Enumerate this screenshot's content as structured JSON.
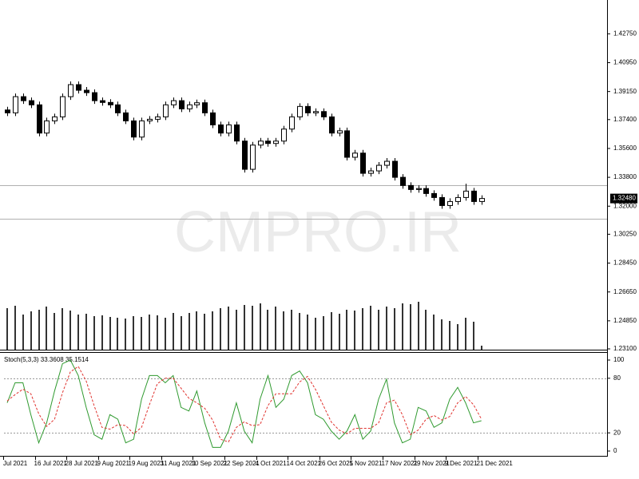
{
  "chart_data": [
    {
      "type": "candlestick",
      "watermark": "CMPRO.IR",
      "open": [
        1.38,
        1.3782,
        1.3883,
        1.3858,
        1.3832,
        1.3656,
        1.3732,
        1.3757,
        1.3883,
        1.3958,
        1.3923,
        1.3908,
        1.3858,
        1.3847,
        1.3832,
        1.3782,
        1.3732,
        1.3631,
        1.3732,
        1.3742,
        1.3757,
        1.3832,
        1.3858,
        1.3807,
        1.3832,
        1.3845,
        1.3782,
        1.3707,
        1.3656,
        1.3707,
        1.3606,
        1.343,
        1.3581,
        1.3606,
        1.3591,
        1.3606,
        1.3681,
        1.3757,
        1.3822,
        1.3782,
        1.379,
        1.3757,
        1.3656,
        1.367,
        1.3505,
        1.3531,
        1.3405,
        1.342,
        1.3455,
        1.348,
        1.338,
        1.3329,
        1.3304,
        1.331,
        1.3279,
        1.3254,
        1.3204,
        1.3229,
        1.3254,
        1.3294,
        1.3229
      ],
      "high": [
        1.382,
        1.3903,
        1.3903,
        1.3878,
        1.3852,
        1.3752,
        1.3777,
        1.3903,
        1.3978,
        1.3978,
        1.3943,
        1.3928,
        1.3878,
        1.3867,
        1.3852,
        1.3802,
        1.3752,
        1.3752,
        1.3762,
        1.3777,
        1.3852,
        1.3878,
        1.3878,
        1.3852,
        1.3865,
        1.3865,
        1.3802,
        1.3727,
        1.3727,
        1.3727,
        1.3626,
        1.3601,
        1.3626,
        1.3626,
        1.3626,
        1.3701,
        1.3777,
        1.3842,
        1.3842,
        1.381,
        1.381,
        1.3777,
        1.369,
        1.369,
        1.3551,
        1.3551,
        1.344,
        1.3475,
        1.35,
        1.35,
        1.34,
        1.3349,
        1.333,
        1.333,
        1.3299,
        1.3274,
        1.3249,
        1.3274,
        1.334,
        1.3314,
        1.3268
      ],
      "low": [
        1.3762,
        1.3762,
        1.3838,
        1.3812,
        1.3636,
        1.3636,
        1.3712,
        1.3737,
        1.3863,
        1.3903,
        1.3888,
        1.3838,
        1.3827,
        1.3812,
        1.3762,
        1.3712,
        1.3611,
        1.3611,
        1.3712,
        1.3722,
        1.3737,
        1.3812,
        1.3787,
        1.3787,
        1.3812,
        1.3762,
        1.3687,
        1.3636,
        1.3636,
        1.3586,
        1.341,
        1.341,
        1.3561,
        1.3571,
        1.3571,
        1.3586,
        1.3661,
        1.3737,
        1.3762,
        1.3762,
        1.3737,
        1.3636,
        1.3636,
        1.3485,
        1.3485,
        1.3385,
        1.3385,
        1.34,
        1.3435,
        1.336,
        1.3309,
        1.3284,
        1.3284,
        1.3259,
        1.3234,
        1.3184,
        1.3184,
        1.3209,
        1.3234,
        1.3209,
        1.3209
      ],
      "close": [
        1.3782,
        1.3883,
        1.3858,
        1.3832,
        1.3656,
        1.3732,
        1.3757,
        1.3883,
        1.3958,
        1.3923,
        1.3908,
        1.3858,
        1.3847,
        1.3832,
        1.3782,
        1.3732,
        1.3631,
        1.3732,
        1.3742,
        1.3757,
        1.3832,
        1.3858,
        1.3807,
        1.3832,
        1.3845,
        1.3782,
        1.3707,
        1.3656,
        1.3707,
        1.3606,
        1.343,
        1.3581,
        1.3606,
        1.3591,
        1.3606,
        1.3681,
        1.3757,
        1.3822,
        1.3782,
        1.379,
        1.3757,
        1.3656,
        1.367,
        1.3505,
        1.3531,
        1.3405,
        1.342,
        1.3455,
        1.348,
        1.338,
        1.3329,
        1.3304,
        1.331,
        1.3279,
        1.3254,
        1.3204,
        1.3229,
        1.3254,
        1.3294,
        1.3229,
        1.3248
      ],
      "volume": [
        52,
        55,
        44,
        48,
        50,
        54,
        46,
        52,
        49,
        44,
        45,
        42,
        43,
        41,
        40,
        39,
        42,
        41,
        44,
        43,
        40,
        46,
        42,
        46,
        48,
        45,
        48,
        52,
        54,
        50,
        56,
        55,
        58,
        50,
        54,
        48,
        50,
        46,
        44,
        40,
        42,
        47,
        45,
        50,
        49,
        52,
        55,
        50,
        54,
        52,
        58,
        57,
        60,
        50,
        44,
        38,
        36,
        32,
        40,
        35,
        5
      ],
      "ylim": [
        1.2305,
        1.4461
      ],
      "xlim": [
        0.1,
        76.4
      ],
      "yticks": [
        {
          "value": 1.4275,
          "label": "1.42750"
        },
        {
          "value": 1.4095,
          "label": "1.40950"
        },
        {
          "value": 1.3915,
          "label": "1.39150"
        },
        {
          "value": 1.374,
          "label": "1.37400"
        },
        {
          "value": 1.356,
          "label": "1.35600"
        },
        {
          "value": 1.338,
          "label": "1.33800"
        },
        {
          "value": 1.32,
          "label": "1.32000"
        },
        {
          "value": 1.3025,
          "label": "1.30250"
        },
        {
          "value": 1.2845,
          "label": "1.28450"
        },
        {
          "value": 1.2665,
          "label": "1.26650"
        },
        {
          "value": 1.2485,
          "label": "1.24850"
        },
        {
          "value": 1.231,
          "label": "1.23100"
        }
      ],
      "levels": [
        1.333,
        1.3123
      ],
      "last_price": {
        "value": 1.3248,
        "label": "1.32480"
      }
    },
    {
      "type": "stochastic",
      "label": "Stoch(5,3,3) 33.3608 35.1514",
      "series": [
        {
          "name": "%K",
          "color": "#2f9a2f",
          "values": [
            53,
            75,
            75,
            40,
            9,
            31,
            66,
            96,
            100,
            83,
            48,
            18,
            13,
            40,
            35,
            9,
            13,
            57,
            83,
            83,
            75,
            83,
            48,
            44,
            66,
            31,
            4,
            4,
            22,
            53,
            22,
            9,
            57,
            83,
            48,
            57,
            83,
            88,
            75,
            40,
            35,
            22,
            13,
            22,
            40,
            13,
            22,
            57,
            79,
            31,
            9,
            13,
            48,
            44,
            26,
            31,
            57,
            70,
            53,
            31,
            33.3608
          ]
        },
        {
          "name": "%D",
          "color": "#e0322e",
          "values": [
            55,
            62,
            68,
            63,
            41,
            27,
            35,
            64,
            87,
            93,
            77,
            50,
            26,
            24,
            29,
            28,
            19,
            26,
            51,
            74,
            80,
            80,
            69,
            58,
            53,
            47,
            34,
            13,
            10,
            26,
            32,
            28,
            29,
            50,
            63,
            63,
            63,
            76,
            82,
            68,
            50,
            32,
            23,
            19,
            25,
            25,
            25,
            31,
            53,
            56,
            40,
            18,
            23,
            35,
            39,
            34,
            38,
            53,
            60,
            51,
            35.1514
          ]
        }
      ],
      "ylim": [
        -4.4,
        107.9
      ],
      "yticks": [
        100,
        80,
        20,
        0
      ],
      "levels": [
        80,
        20
      ],
      "xlim": [
        0.1,
        76.4
      ],
      "xticks": [
        {
          "value": 0,
          "label": "Jul 2021"
        },
        {
          "value": 4,
          "label": "16 Jul 2021"
        },
        {
          "value": 8,
          "label": "28 Jul 2021"
        },
        {
          "value": 12,
          "label": "9 Aug 2021"
        },
        {
          "value": 16,
          "label": "19 Aug 2021"
        },
        {
          "value": 20,
          "label": "31 Aug 2021"
        },
        {
          "value": 24,
          "label": "10 Sep 2021"
        },
        {
          "value": 28,
          "label": "22 Sep 2021"
        },
        {
          "value": 32,
          "label": "4 Oct 2021"
        },
        {
          "value": 36,
          "label": "14 Oct 2021"
        },
        {
          "value": 40,
          "label": "26 Oct 2021"
        },
        {
          "value": 44,
          "label": "5 Nov 2021"
        },
        {
          "value": 48,
          "label": "17 Nov 2021"
        },
        {
          "value": 52,
          "label": "29 Nov 2021"
        },
        {
          "value": 56,
          "label": "9 Dec 2021"
        },
        {
          "value": 60,
          "label": "21 Dec 2021"
        }
      ]
    }
  ]
}
